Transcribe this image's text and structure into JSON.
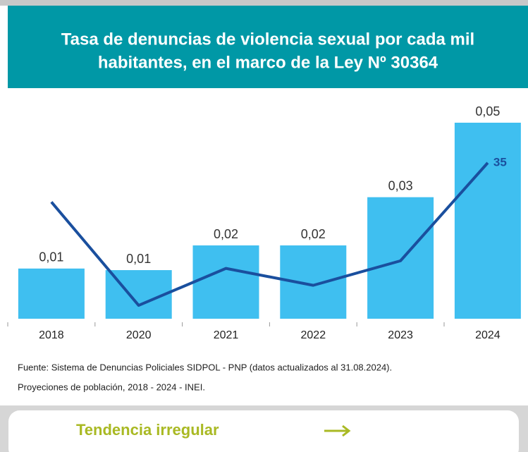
{
  "chart_data": {
    "type": "bar",
    "title": [
      "Tasa de denuncias de violencia sexual por cada mil",
      "habitantes, en el marco de la Ley Nº 30364"
    ],
    "categories": [
      "2018",
      "2020",
      "2021",
      "2022",
      "2023",
      "2024"
    ],
    "series": [
      {
        "color": "#3fbff0",
        "values": [
          0.0128,
          0.0124,
          0.0187,
          0.0187,
          0.031,
          0.05
        ],
        "value_labels": [
          "0,01",
          "0,01",
          "0,02",
          "0,02",
          "0,03",
          "0,05"
        ]
      },
      {
        "type": "line",
        "axis": "y2",
        "color": "#1a4f9e",
        "values": [
          26.2,
          3.0,
          11.3,
          7.5,
          13.0,
          35
        ],
        "value_labels": [
          null,
          null,
          null,
          null,
          null,
          "35"
        ]
      }
    ],
    "ylim": [
      0,
      0.05
    ],
    "y2lim": [
      0,
      44
    ],
    "source": [
      "Fuente: Sistema de Denuncias Policiales SIDPOL - PNP (datos actualizados al 31.08.2024).",
      "Proyeciones de población, 2018 - 2024 - INEI."
    ]
  },
  "button": {
    "label": "Tendencia irregular"
  }
}
